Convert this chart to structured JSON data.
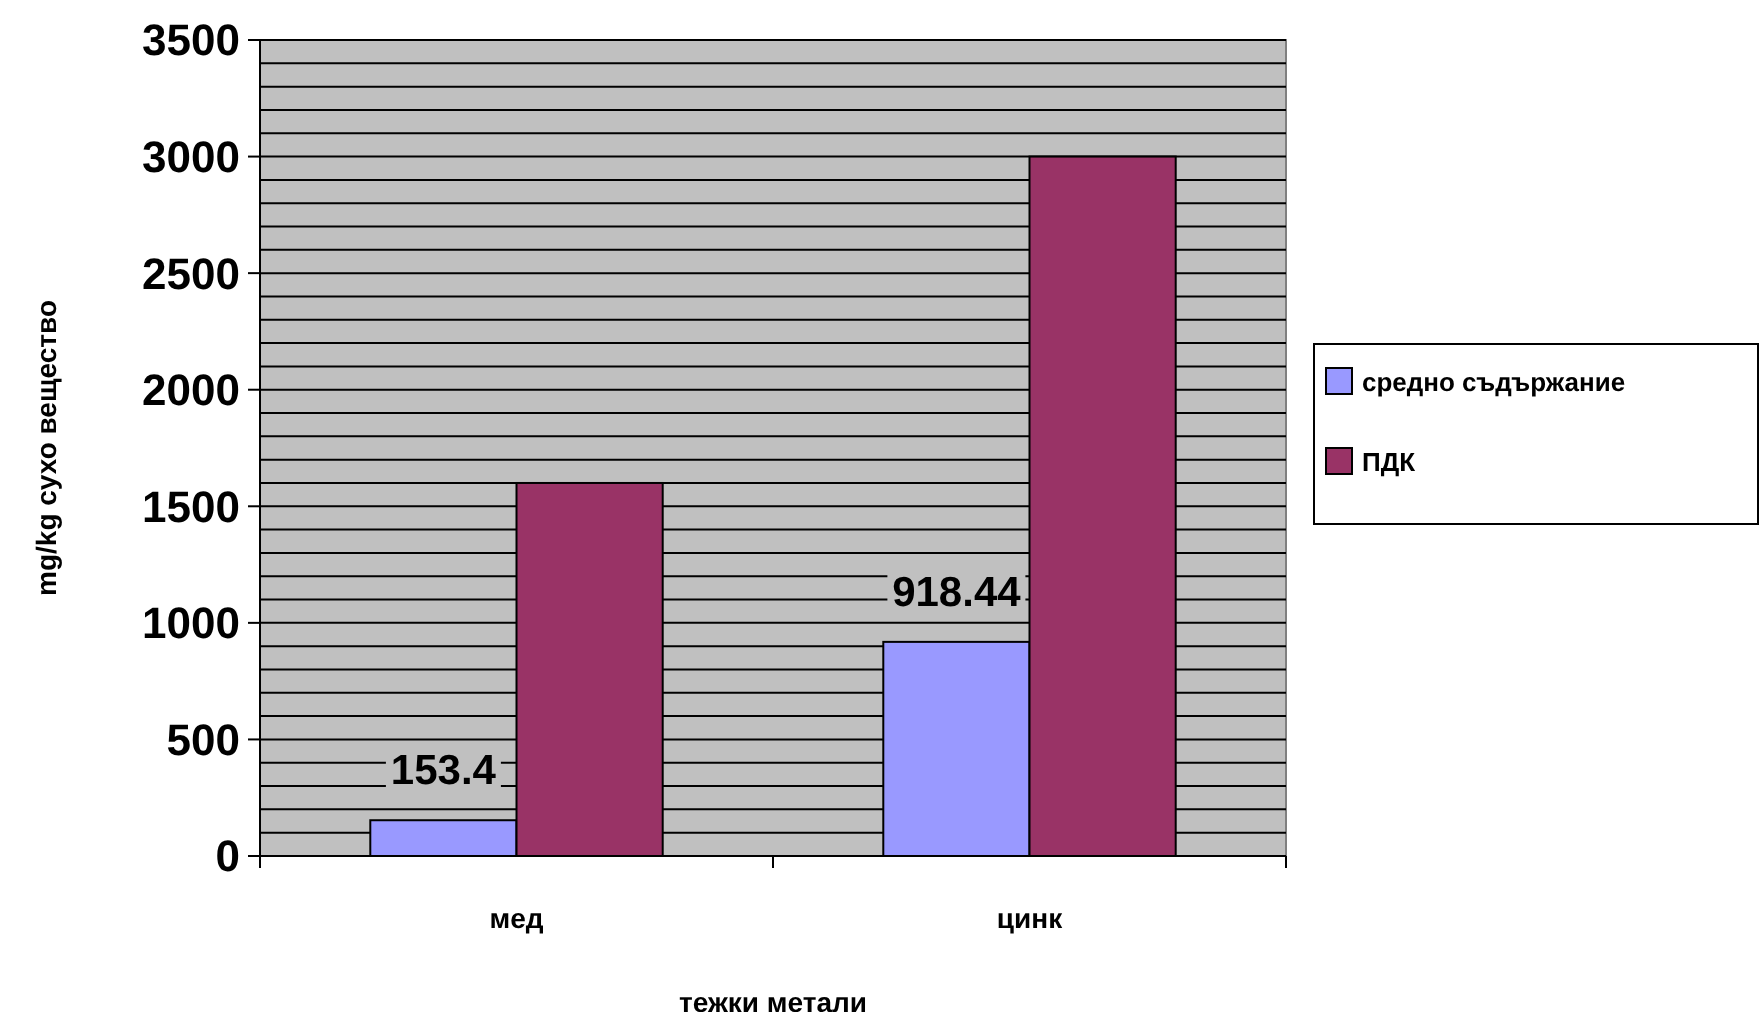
{
  "chart_data": {
    "type": "bar",
    "xlabel": "тежки метали",
    "ylabel": "mg/kg сухо вещество",
    "categories": [
      "мед",
      "цинк"
    ],
    "series": [
      {
        "name": "средно съдържание",
        "color": "#9999ff",
        "values": [
          153.4,
          918.44
        ],
        "value_labels": [
          "153.4",
          "918.44"
        ]
      },
      {
        "name": "ПДК",
        "color": "#993366",
        "values": [
          1600,
          3000
        ]
      }
    ],
    "ylim": [
      0,
      3500
    ],
    "yticks": [
      0,
      {
        "value": 100,
        "label": null
      },
      {
        "value": 200,
        "label": null
      },
      {
        "value": 300,
        "label": null
      },
      {
        "value": 400,
        "label": null
      },
      500,
      {
        "value": 600,
        "label": null
      },
      {
        "value": 700,
        "label": null
      },
      {
        "value": 800,
        "label": null
      },
      {
        "value": 900,
        "label": null
      },
      1000,
      {
        "value": 1100,
        "label": null
      },
      {
        "value": 1200,
        "label": null
      },
      {
        "value": 1300,
        "label": null
      },
      {
        "value": 1400,
        "label": null
      },
      1500,
      {
        "value": 1600,
        "label": null
      },
      {
        "value": 1700,
        "label": null
      },
      {
        "value": 1800,
        "label": null
      },
      {
        "value": 1900,
        "label": null
      },
      2000,
      {
        "value": 2100,
        "label": null
      },
      {
        "value": 2200,
        "label": null
      },
      {
        "value": 2300,
        "label": null
      },
      {
        "value": 2400,
        "label": null
      },
      2500,
      {
        "value": 2600,
        "label": null
      },
      {
        "value": 2700,
        "label": null
      },
      {
        "value": 2800,
        "label": null
      },
      {
        "value": 2900,
        "label": null
      },
      3000,
      {
        "value": 3100,
        "label": null
      },
      {
        "value": 3200,
        "label": null
      },
      {
        "value": 3300,
        "label": null
      },
      {
        "value": 3400,
        "label": null
      },
      3500
    ],
    "grid": "y",
    "legend": "right"
  }
}
